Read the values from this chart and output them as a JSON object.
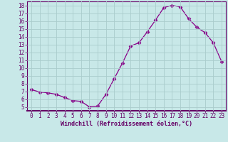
{
  "x": [
    0,
    1,
    2,
    3,
    4,
    5,
    6,
    7,
    8,
    9,
    10,
    11,
    12,
    13,
    14,
    15,
    16,
    17,
    18,
    19,
    20,
    21,
    22,
    23
  ],
  "y": [
    7.2,
    6.9,
    6.8,
    6.6,
    6.2,
    5.8,
    5.7,
    5.0,
    5.1,
    6.6,
    8.6,
    10.6,
    12.8,
    13.2,
    14.6,
    16.1,
    17.7,
    18.0,
    17.8,
    16.3,
    15.2,
    14.5,
    13.2,
    10.8
  ],
  "line_color": "#880088",
  "marker": "D",
  "marker_size": 2.5,
  "bg_color": "#c8e8e8",
  "grid_color": "#aacccc",
  "xlabel": "Windchill (Refroidissement éolien,°C)",
  "xlim": [
    -0.5,
    23.5
  ],
  "ylim": [
    4.5,
    18.5
  ],
  "xticks": [
    0,
    1,
    2,
    3,
    4,
    5,
    6,
    7,
    8,
    9,
    10,
    11,
    12,
    13,
    14,
    15,
    16,
    17,
    18,
    19,
    20,
    21,
    22,
    23
  ],
  "yticks": [
    5,
    6,
    7,
    8,
    9,
    10,
    11,
    12,
    13,
    14,
    15,
    16,
    17,
    18
  ]
}
